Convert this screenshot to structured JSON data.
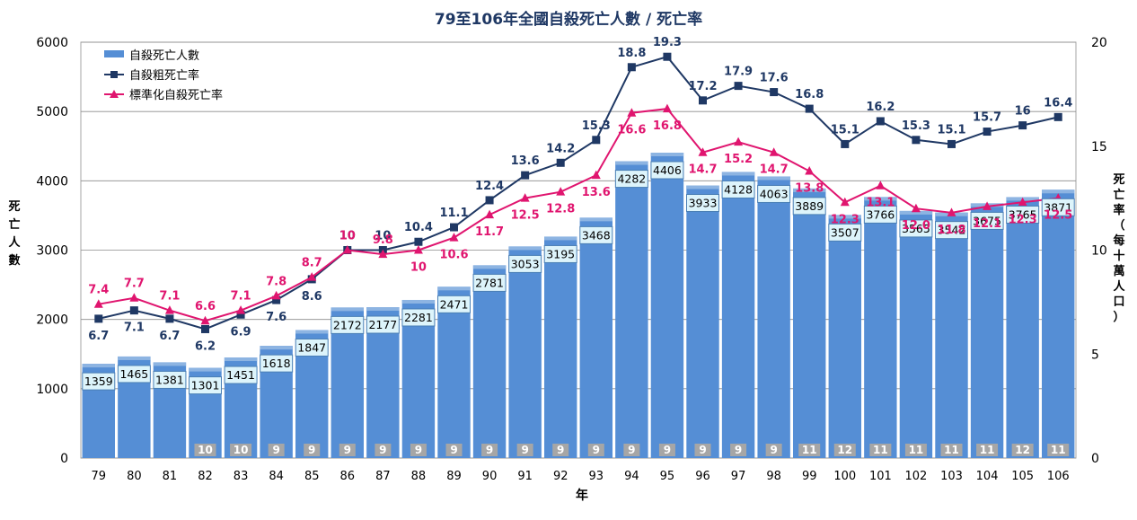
{
  "chart_data": {
    "type": "bar",
    "title": "79至106年全國自殺死亡人數 / 死亡率",
    "xlabel": "年",
    "ylabel_left": "死亡人數",
    "ylabel_right": "死亡率（每十萬人口）",
    "categories": [
      "79",
      "80",
      "81",
      "82",
      "83",
      "84",
      "85",
      "86",
      "87",
      "88",
      "89",
      "90",
      "91",
      "92",
      "93",
      "94",
      "95",
      "96",
      "97",
      "98",
      "99",
      "100",
      "101",
      "102",
      "103",
      "104",
      "105",
      "106"
    ],
    "ylim_left": [
      0,
      6000
    ],
    "yticks_left": [
      "0",
      "1000",
      "2000",
      "3000",
      "4000",
      "5000",
      "6000"
    ],
    "ylim_right": [
      0,
      20
    ],
    "yticks_right": [
      "0",
      "5",
      "10",
      "15",
      "20"
    ],
    "grid": true,
    "legend_position": "top-left",
    "series": [
      {
        "name": "自殺死亡人數",
        "kind": "bar",
        "axis": "left",
        "color": "#558ED5",
        "values": [
          1359,
          1465,
          1381,
          1301,
          1451,
          1618,
          1847,
          2172,
          2177,
          2281,
          2471,
          2781,
          3053,
          3195,
          3468,
          4282,
          4406,
          3933,
          4128,
          4063,
          3889,
          3507,
          3766,
          3565,
          3542,
          3675,
          3765,
          3871
        ],
        "labels": [
          "1359",
          "1465",
          "1381",
          "1301",
          "1451",
          "1618",
          "1847",
          "2172",
          "2177",
          "2281",
          "2471",
          "2781",
          "3053",
          "3195",
          "3468",
          "4282",
          "4406",
          "3933",
          "4128",
          "4063",
          "3889",
          "3507",
          "3766",
          "3565",
          "3542",
          "3675",
          "3765",
          "3871"
        ]
      },
      {
        "name": "自殺粗死亡率",
        "kind": "line",
        "axis": "right",
        "color": "#1F3864",
        "marker": "square",
        "values": [
          6.7,
          7.1,
          6.7,
          6.2,
          6.9,
          7.6,
          8.6,
          10,
          10,
          10.4,
          11.1,
          12.4,
          13.6,
          14.2,
          15.3,
          18.8,
          19.3,
          17.2,
          17.9,
          17.6,
          16.8,
          15.1,
          16.2,
          15.3,
          15.1,
          15.7,
          16,
          16.4
        ],
        "labels": [
          "6.7",
          "7.1",
          "6.7",
          "6.2",
          "6.9",
          "7.6",
          "8.6",
          "10",
          "10",
          "10.4",
          "11.1",
          "12.4",
          "13.6",
          "14.2",
          "15.3",
          "18.8",
          "19.3",
          "17.2",
          "17.9",
          "17.6",
          "16.8",
          "15.1",
          "16.2",
          "15.3",
          "15.1",
          "15.7",
          "16",
          "16.4"
        ]
      },
      {
        "name": "標準化自殺死亡率",
        "kind": "line",
        "axis": "right",
        "color": "#E0156F",
        "marker": "triangle",
        "values": [
          7.4,
          7.7,
          7.1,
          6.6,
          7.1,
          7.8,
          8.7,
          10,
          9.8,
          10,
          10.6,
          11.7,
          12.5,
          12.8,
          13.6,
          16.6,
          16.8,
          14.7,
          15.2,
          14.7,
          13.8,
          12.3,
          13.1,
          12.0,
          11.8,
          12.1,
          12.3,
          12.5
        ],
        "labels": [
          "7.4",
          "7.7",
          "7.1",
          "6.6",
          "7.1",
          "7.8",
          "8.7",
          "10",
          "9.8",
          "10",
          "10.6",
          "11.7",
          "12.5",
          "12.8",
          "13.6",
          "16.6",
          "16.8",
          "14.7",
          "15.2",
          "14.7",
          "13.8",
          "12.3",
          "13.1",
          "12.0",
          "11.8",
          "12.1",
          "12.3",
          "12.5"
        ]
      }
    ],
    "rank_badges": [
      "",
      "",
      "",
      "10",
      "10",
      "9",
      "9",
      "9",
      "9",
      "9",
      "9",
      "9",
      "9",
      "9",
      "9",
      "9",
      "9",
      "9",
      "9",
      "9",
      "11",
      "12",
      "11",
      "11",
      "11",
      "11",
      "12",
      "11"
    ]
  }
}
